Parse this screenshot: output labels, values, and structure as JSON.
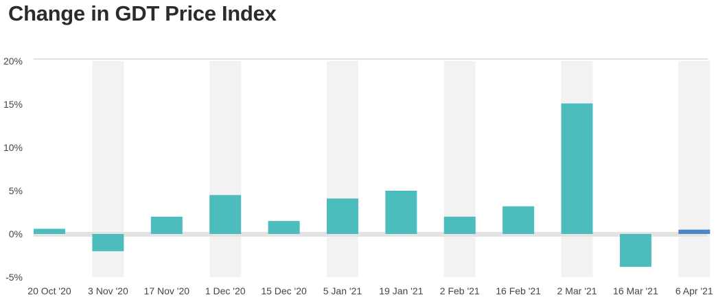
{
  "chart_data": {
    "type": "bar",
    "title": "Change in GDT Price Index",
    "xlabel": "",
    "ylabel": "",
    "categories": [
      "20 Oct '20",
      "3 Nov '20",
      "17 Nov '20",
      "1 Dec '20",
      "15 Dec '20",
      "5 Jan '21",
      "19 Jan '21",
      "2 Feb '21",
      "16 Feb '21",
      "2 Mar '21",
      "16 Mar '21",
      "6 Apr '21"
    ],
    "values": [
      0.6,
      -2.0,
      2.0,
      4.5,
      1.5,
      4.1,
      5.0,
      2.0,
      3.2,
      15.1,
      -3.8,
      0.5
    ],
    "ylim": [
      -5,
      20
    ],
    "yticks": [
      20,
      15,
      10,
      5,
      0,
      -5
    ],
    "ytick_labels": [
      "20%",
      "15%",
      "10%",
      "5%",
      "0%",
      "-5%"
    ],
    "grid": false,
    "legend": "none",
    "colors": {
      "bar": "#4dbcbc",
      "last_bar": "#4a86c8",
      "band": "#f2f2f2",
      "zero_line": "#e3e3e3",
      "top_line": "#e0e0e0"
    }
  }
}
